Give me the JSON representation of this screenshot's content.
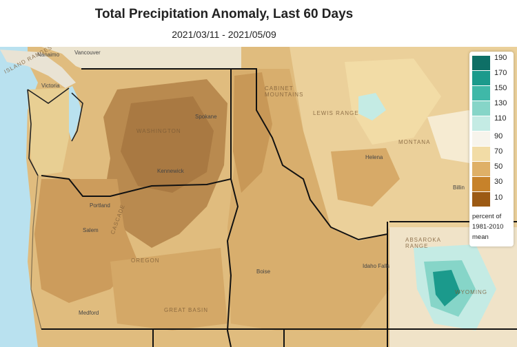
{
  "header": {
    "title": "Total Precipitation Anomaly, Last 60 Days",
    "date_range": "2021/03/11 - 2021/05/09"
  },
  "legend": {
    "ticks": [
      "190",
      "170",
      "150",
      "130",
      "110",
      "90",
      "70",
      "50",
      "30",
      "10"
    ],
    "colors": [
      "#0e6f66",
      "#1b9a8c",
      "#3fb8a8",
      "#86d5c8",
      "#c4ebe4",
      "#f7f4ec",
      "#f2dca6",
      "#dfb067",
      "#c7822a",
      "#9c5a14"
    ],
    "note_line1": "percent of",
    "note_line2": "1981-2010",
    "note_line3": "mean"
  },
  "places": {
    "nanaimo": "Nanaimo",
    "vancouver": "Vancouver",
    "victoria": "Victoria",
    "spokane": "Spokane",
    "kennewick": "Kennewick",
    "portland": "Portland",
    "salem": "Salem",
    "medford": "Medford",
    "boise": "Boise",
    "helena": "Helena",
    "billings": "Billin",
    "idaho_falls": "Idaho Falls"
  },
  "regions": {
    "island_ranges": "ISLAND RANGES",
    "washington": "WASHINGTON",
    "oregon": "OREGON",
    "montana": "MONTANA",
    "lewis_range": "LEWIS RANGE",
    "cabinet_mtns": "CABINET MOUNTAINS",
    "cascade": "CASCADE",
    "basin": "GREAT BASIN",
    "absaroka": "ABSAROKA RANGE",
    "wyoming": "WYOMING"
  }
}
